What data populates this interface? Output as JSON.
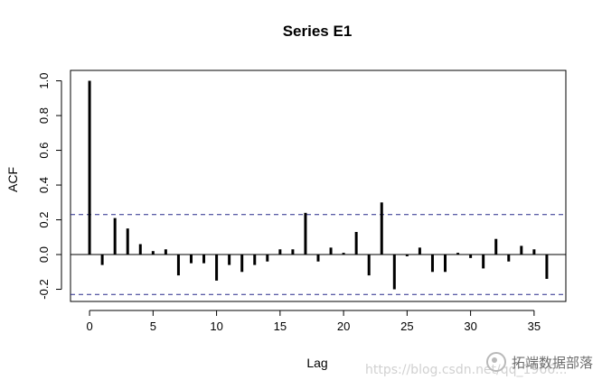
{
  "chart_data": {
    "type": "bar",
    "title": "Series  E1",
    "xlabel": "Lag",
    "ylabel": "ACF",
    "xlim": [
      -1.5,
      37.5
    ],
    "ylim": [
      -0.27,
      1.06
    ],
    "xticks": [
      0,
      5,
      10,
      15,
      20,
      25,
      30,
      35
    ],
    "yticks": [
      -0.2,
      0.0,
      0.2,
      0.4,
      0.6,
      0.8,
      1.0
    ],
    "ytick_labels": [
      "-0.2",
      "0.0",
      "0.2",
      "0.4",
      "0.6",
      "0.8",
      "1.0"
    ],
    "confidence_bound": 0.23,
    "x": [
      0,
      1,
      2,
      3,
      4,
      5,
      6,
      7,
      8,
      9,
      10,
      11,
      12,
      13,
      14,
      15,
      16,
      17,
      18,
      19,
      20,
      21,
      22,
      23,
      24,
      25,
      26,
      27,
      28,
      29,
      30,
      31,
      32,
      33,
      34,
      35,
      36
    ],
    "values": [
      1.0,
      -0.06,
      0.21,
      0.15,
      0.06,
      0.02,
      0.03,
      -0.12,
      -0.05,
      -0.05,
      -0.15,
      -0.06,
      -0.1,
      -0.06,
      -0.04,
      0.03,
      0.03,
      0.24,
      -0.04,
      0.04,
      0.01,
      0.13,
      -0.12,
      0.3,
      -0.2,
      -0.01,
      0.04,
      -0.1,
      -0.1,
      0.01,
      -0.02,
      -0.08,
      0.09,
      -0.04,
      0.05,
      0.03,
      -0.14
    ],
    "grid": false,
    "colors": {
      "bars": "#000000",
      "bounds": "#27288a",
      "axis": "#000000"
    }
  },
  "watermark": {
    "brand_text": "拓端数据部落",
    "url_text": "https://blog.csdn.net/qq_1966..."
  }
}
